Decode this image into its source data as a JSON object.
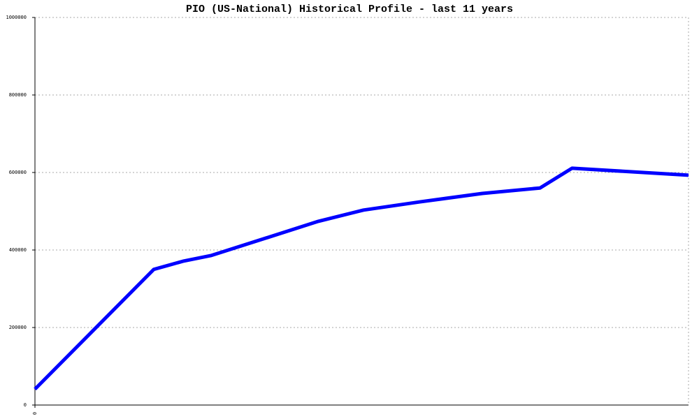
{
  "chart_data": {
    "type": "line",
    "title": "PIO (US-National) Historical Profile - last 11 years",
    "x": [
      0,
      2.0,
      2.49,
      2.97,
      4.77,
      5.53,
      6.47,
      7.53,
      8.5,
      9.04,
      11
    ],
    "xlim": [
      0,
      11
    ],
    "xticks": [
      0
    ],
    "series": [
      {
        "name": "PIO",
        "color": "#0000ff",
        "values": [
          41000,
          350000,
          371000,
          386000,
          474000,
          503000,
          524000,
          546000,
          560000,
          611000,
          593000
        ]
      }
    ],
    "ylim": [
      0,
      1000000
    ],
    "yticks": [
      0,
      200000,
      400000,
      600000,
      800000,
      1000000
    ],
    "grid": true
  }
}
